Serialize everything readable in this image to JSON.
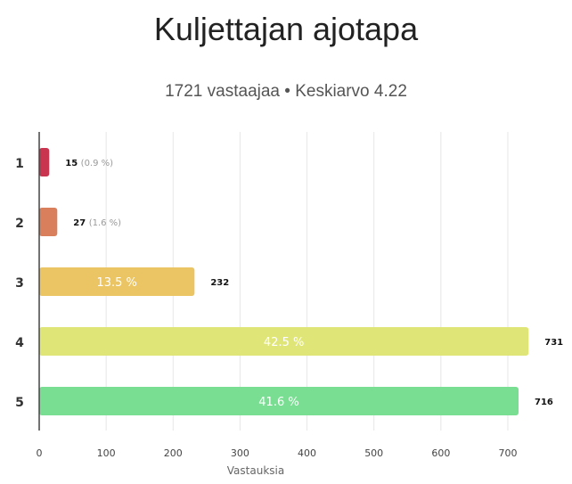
{
  "chart_data": {
    "type": "bar",
    "orientation": "horizontal",
    "title": "Kuljettajan ajotapa",
    "subtitle": "1721 vastaajaa • Keskiarvo 4.22",
    "categories": [
      "1",
      "2",
      "3",
      "4",
      "5"
    ],
    "values": [
      15,
      27,
      232,
      731,
      716
    ],
    "percent_labels": [
      "0.9 %",
      "1.6 %",
      "13.5 %",
      "42.5 %",
      "41.6 %"
    ],
    "colors": [
      "#c9354f",
      "#d97f5b",
      "#ebc463",
      "#dfe677",
      "#79dd92"
    ],
    "xlabel": "Vastauksia",
    "xlim": [
      0,
      750
    ],
    "xticks": [
      0,
      100,
      200,
      300,
      400,
      500,
      600,
      700
    ],
    "grid": true
  }
}
